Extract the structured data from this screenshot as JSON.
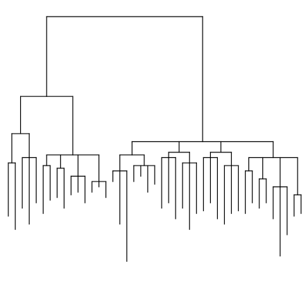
{
  "diagram": {
    "type": "dendrogram",
    "orientation": "top-down",
    "line_color": "#000000",
    "background": "#ffffff",
    "leaf_labels_visible": false,
    "tree": {
      "h": 0,
      "c": [
        {
          "h": 0.3,
          "c": [
            {
              "h": 0.44,
              "c": [
                {
                  "h": 0.55,
                  "c": [
                    {
                      "h": 0.75
                    },
                    {
                      "h": 0.8
                    }
                  ]
                },
                {
                  "h": 0.53,
                  "c": [
                    {
                      "h": 0.72
                    },
                    {
                      "h": 0.78
                    },
                    {
                      "h": 0.7
                    }
                  ]
                }
              ]
            },
            {
              "h": 0.52,
              "c": [
                {
                  "h": 0.56,
                  "c": [
                    {
                      "h": 0.74
                    },
                    {
                      "h": 0.69
                    }
                  ]
                },
                {
                  "h": 0.57,
                  "c": [
                    {
                      "h": 0.68
                    },
                    {
                      "h": 0.72
                    }
                  ]
                },
                {
                  "h": 0.6,
                  "c": [
                    {
                      "h": 0.67
                    },
                    {
                      "h": 0.66
                    },
                    {
                      "h": 0.7
                    }
                  ]
                },
                {
                  "h": 0.62,
                  "c": [
                    {
                      "h": 0.66
                    },
                    {
                      "h": 0.64
                    },
                    {
                      "h": 0.68
                    }
                  ]
                }
              ]
            }
          ]
        },
        {
          "h": 0.47,
          "c": [
            {
              "h": 0.52,
              "c": [
                {
                  "h": 0.58,
                  "c": [
                    {
                      "h": 0.62
                    },
                    {
                      "h": 0.78
                    },
                    {
                      "h": 0.92
                    }
                  ]
                },
                {
                  "h": 0.56,
                  "c": [
                    {
                      "h": 0.62
                    },
                    {
                      "h": 0.6
                    },
                    {
                      "h": 0.66
                    },
                    {
                      "h": 0.63
                    }
                  ]
                }
              ]
            },
            {
              "h": 0.51,
              "c": [
                {
                  "h": 0.53,
                  "c": [
                    {
                      "h": 0.72
                    },
                    {
                      "h": 0.7
                    },
                    {
                      "h": 0.76
                    }
                  ]
                },
                {
                  "h": 0.55,
                  "c": [
                    {
                      "h": 0.72
                    },
                    {
                      "h": 0.8
                    },
                    {
                      "h": 0.74
                    }
                  ]
                }
              ]
            },
            {
              "h": 0.51,
              "c": [
                {
                  "h": 0.53,
                  "c": [
                    {
                      "h": 0.73
                    },
                    {
                      "h": 0.7
                    },
                    {
                      "h": 0.76
                    }
                  ]
                },
                {
                  "h": 0.56,
                  "c": [
                    {
                      "h": 0.78
                    },
                    {
                      "h": 0.74
                    },
                    {
                      "h": 0.73
                    }
                  ]
                }
              ]
            },
            {
              "h": 0.53,
              "c": [
                {
                  "h": 0.58,
                  "c": [
                    {
                      "h": 0.74
                    },
                    {
                      "h": 0.7
                    }
                  ]
                },
                {
                  "h": 0.61,
                  "c": [
                    {
                      "h": 0.72
                    },
                    {
                      "h": 0.7
                    }
                  ]
                },
                {
                  "h": 0.64,
                  "c": [
                    {
                      "h": 0.76
                    },
                    {
                      "h": 0.9
                    },
                    {
                      "h": 0.82
                    }
                  ]
                },
                {
                  "h": 0.67,
                  "c": [
                    {
                      "h": 0.75
                    },
                    {
                      "h": 0.74
                    }
                  ]
                }
              ]
            }
          ]
        }
      ]
    }
  }
}
